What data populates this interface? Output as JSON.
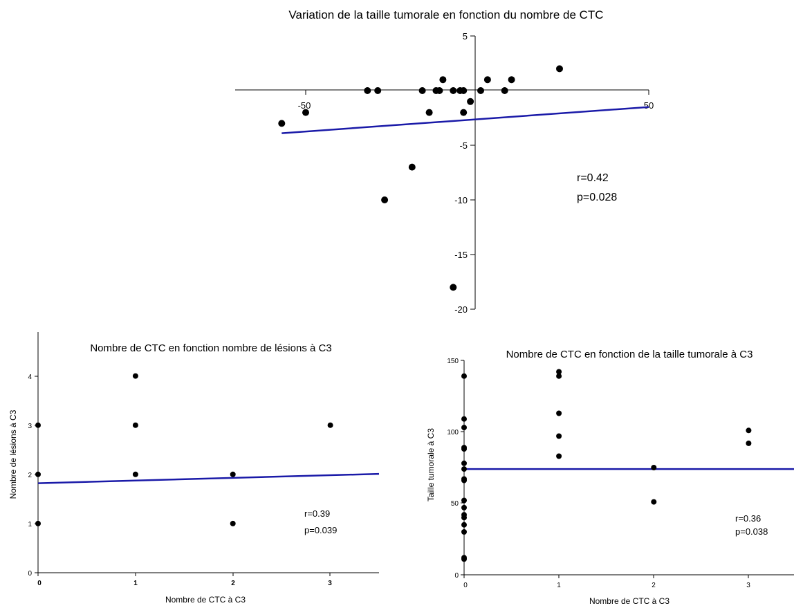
{
  "chart_data": [
    {
      "type": "scatter",
      "title": "Variation de la taille tumorale en fonction du nombre de CTC",
      "xlabel": "",
      "ylabel": "",
      "xlim": [
        -60,
        50
      ],
      "ylim": [
        -20,
        5
      ],
      "x_ticks": [
        -50,
        50
      ],
      "y_ticks": [
        5,
        -5,
        -10,
        -15,
        -20
      ],
      "grid": false,
      "points": [
        {
          "x": -57,
          "y": -3
        },
        {
          "x": -50,
          "y": -2
        },
        {
          "x": -32,
          "y": 0
        },
        {
          "x": -29,
          "y": 0
        },
        {
          "x": -27,
          "y": -10
        },
        {
          "x": -19,
          "y": -7
        },
        {
          "x": -16,
          "y": 0
        },
        {
          "x": -14,
          "y": -2
        },
        {
          "x": -12,
          "y": 0
        },
        {
          "x": -11,
          "y": 0
        },
        {
          "x": -10,
          "y": 1
        },
        {
          "x": -7,
          "y": 0
        },
        {
          "x": -7,
          "y": -18
        },
        {
          "x": -5,
          "y": 0
        },
        {
          "x": -4,
          "y": 0
        },
        {
          "x": -4,
          "y": -2
        },
        {
          "x": -2,
          "y": -1
        },
        {
          "x": 1,
          "y": 0
        },
        {
          "x": 3,
          "y": 1
        },
        {
          "x": 8,
          "y": 0
        },
        {
          "x": 10,
          "y": 1
        },
        {
          "x": 24,
          "y": 2
        }
      ],
      "regression": {
        "x": [
          -57,
          50
        ],
        "y": [
          -3.9,
          -1.5
        ],
        "color": "#1a1aa8"
      },
      "annotations": [
        "r=0.42",
        "p=0.028"
      ]
    },
    {
      "type": "scatter",
      "title": "Nombre de CTC en fonction nombre de lésions à C3",
      "xlabel": "Nombre de CTC à C3",
      "ylabel": "Nombre de lésions à C3",
      "xlim": [
        0,
        3.5
      ],
      "ylim": [
        0,
        4.5
      ],
      "x_ticks": [
        0,
        1,
        2,
        3
      ],
      "y_ticks": [
        0,
        1,
        2,
        3,
        4
      ],
      "grid": false,
      "points": [
        {
          "x": 0,
          "y": 3
        },
        {
          "x": 0,
          "y": 2
        },
        {
          "x": 0,
          "y": 1
        },
        {
          "x": 1,
          "y": 4
        },
        {
          "x": 1,
          "y": 3
        },
        {
          "x": 1,
          "y": 2
        },
        {
          "x": 2,
          "y": 2
        },
        {
          "x": 2,
          "y": 1
        },
        {
          "x": 3,
          "y": 3
        }
      ],
      "regression": {
        "x": [
          0,
          3.5
        ],
        "y": [
          1.82,
          2.01
        ],
        "color": "#1a1aa8"
      },
      "annotations": [
        "r=0.39",
        "p=0.039"
      ]
    },
    {
      "type": "scatter",
      "title": "Nombre de CTC en fonction de la taille tumorale à C3",
      "xlabel": "Nombre de CTC à C3",
      "ylabel": "Taille tumorale à C3",
      "xlim": [
        0,
        3.5
      ],
      "ylim": [
        0,
        150
      ],
      "x_ticks": [
        0,
        1,
        2,
        3
      ],
      "y_ticks": [
        0,
        50,
        100,
        150
      ],
      "grid": false,
      "points": [
        {
          "x": 0,
          "y": 139
        },
        {
          "x": 0,
          "y": 109
        },
        {
          "x": 0,
          "y": 103
        },
        {
          "x": 0,
          "y": 89
        },
        {
          "x": 0,
          "y": 88
        },
        {
          "x": 0,
          "y": 78
        },
        {
          "x": 0,
          "y": 74
        },
        {
          "x": 0,
          "y": 67
        },
        {
          "x": 0,
          "y": 66
        },
        {
          "x": 0,
          "y": 52
        },
        {
          "x": 0,
          "y": 47
        },
        {
          "x": 0,
          "y": 42
        },
        {
          "x": 0,
          "y": 40
        },
        {
          "x": 0,
          "y": 35
        },
        {
          "x": 0,
          "y": 30
        },
        {
          "x": 0,
          "y": 12
        },
        {
          "x": 0,
          "y": 11
        },
        {
          "x": 1,
          "y": 142
        },
        {
          "x": 1,
          "y": 139
        },
        {
          "x": 1,
          "y": 113
        },
        {
          "x": 1,
          "y": 97
        },
        {
          "x": 1,
          "y": 83
        },
        {
          "x": 2,
          "y": 75
        },
        {
          "x": 2,
          "y": 51
        },
        {
          "x": 3,
          "y": 101
        },
        {
          "x": 3,
          "y": 92
        }
      ],
      "regression": {
        "x": [
          0,
          3.5
        ],
        "y": [
          74,
          74
        ],
        "color": "#1a1aa8"
      },
      "annotations": [
        "r=0.36",
        "p=0.038"
      ]
    }
  ]
}
